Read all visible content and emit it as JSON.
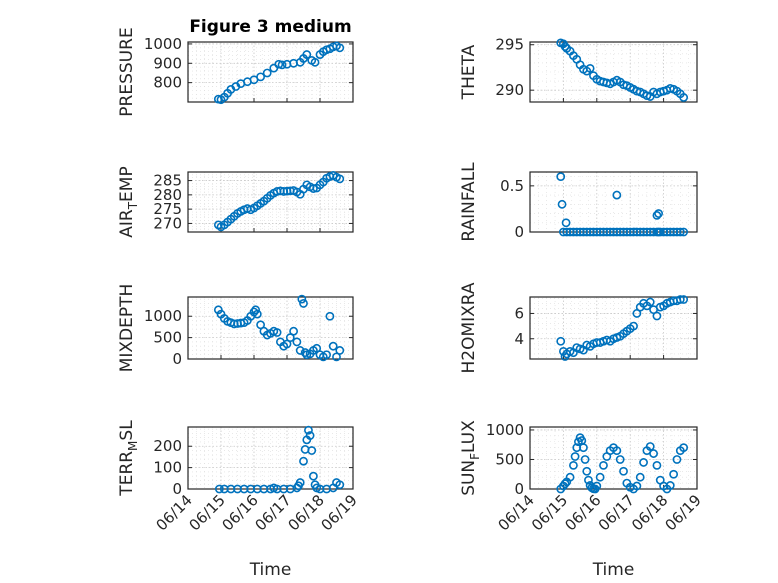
{
  "chart_data": [
    {
      "type": "scatter",
      "title": "Figure 3 medium",
      "ylabel": "PRESSURE",
      "xlabel": "",
      "ylim": [
        700,
        1010
      ],
      "yticks": [
        800,
        900,
        1000
      ],
      "xlim": [
        "06/14",
        "06/19"
      ],
      "xticks": [
        "06/14",
        "06/15",
        "06/16",
        "06/17",
        "06/18",
        "06/19"
      ],
      "show_xticklabels": false,
      "grid": true,
      "x": [
        0.92,
        1.0,
        1.1,
        1.2,
        1.3,
        1.45,
        1.6,
        1.8,
        2.0,
        2.2,
        2.4,
        2.6,
        2.75,
        2.85,
        3.0,
        3.2,
        3.4,
        3.5,
        3.6,
        3.75,
        3.85,
        4.0,
        4.1,
        4.2,
        4.3,
        4.4,
        4.5,
        4.6
      ],
      "y": [
        715,
        712,
        725,
        745,
        765,
        780,
        795,
        805,
        815,
        830,
        850,
        875,
        895,
        892,
        895,
        900,
        905,
        925,
        945,
        915,
        905,
        945,
        960,
        970,
        975,
        985,
        990,
        980
      ]
    },
    {
      "type": "scatter",
      "title": "",
      "ylabel": "THETA",
      "xlabel": "",
      "ylim": [
        288.7,
        295.3
      ],
      "yticks": [
        290,
        295
      ],
      "xlim": [
        "06/14",
        "06/19"
      ],
      "xticks": [
        "06/14",
        "06/15",
        "06/16",
        "06/17",
        "06/18",
        "06/19"
      ],
      "show_xticklabels": false,
      "grid": true,
      "x": [
        0.92,
        1.0,
        1.05,
        1.1,
        1.2,
        1.3,
        1.4,
        1.5,
        1.6,
        1.7,
        1.8,
        1.9,
        2.0,
        2.1,
        2.2,
        2.3,
        2.4,
        2.5,
        2.6,
        2.7,
        2.8,
        2.9,
        3.0,
        3.1,
        3.2,
        3.3,
        3.4,
        3.5,
        3.6,
        3.7,
        3.8,
        3.9,
        4.0,
        4.1,
        4.2,
        4.3,
        4.4,
        4.5,
        4.6
      ],
      "y": [
        295.2,
        295.1,
        294.8,
        294.6,
        294.3,
        293.8,
        293.4,
        292.8,
        292.3,
        292.1,
        292.4,
        291.6,
        291.2,
        291.0,
        290.9,
        290.8,
        290.7,
        290.9,
        291.1,
        290.9,
        290.6,
        290.5,
        290.3,
        290.1,
        289.9,
        289.8,
        289.6,
        289.4,
        289.3,
        289.8,
        289.6,
        289.8,
        289.9,
        290.0,
        290.2,
        290.1,
        289.9,
        289.6,
        289.2
      ]
    },
    {
      "type": "scatter",
      "title": "",
      "ylabel": "AIR_TEMP",
      "xlabel": "",
      "ylim": [
        267,
        288
      ],
      "yticks": [
        270,
        275,
        280,
        285
      ],
      "xlim": [
        "06/14",
        "06/19"
      ],
      "xticks": [
        "06/14",
        "06/15",
        "06/16",
        "06/17",
        "06/18",
        "06/19"
      ],
      "show_xticklabels": false,
      "grid": true,
      "x": [
        0.92,
        1.0,
        1.1,
        1.2,
        1.3,
        1.4,
        1.5,
        1.6,
        1.7,
        1.8,
        1.9,
        2.0,
        2.1,
        2.2,
        2.3,
        2.4,
        2.5,
        2.6,
        2.7,
        2.8,
        2.9,
        3.0,
        3.1,
        3.2,
        3.3,
        3.4,
        3.5,
        3.6,
        3.7,
        3.8,
        3.9,
        4.0,
        4.1,
        4.2,
        4.3,
        4.4,
        4.5,
        4.6
      ],
      "y": [
        269.5,
        268.8,
        269.5,
        270.5,
        271.5,
        272.5,
        273.5,
        274.2,
        274.8,
        275.2,
        274.8,
        275.4,
        276.2,
        277.0,
        277.8,
        278.8,
        279.8,
        280.6,
        281.2,
        281.4,
        281.2,
        281.3,
        281.4,
        281.5,
        281.0,
        280.2,
        282.0,
        283.5,
        282.8,
        282.2,
        282.4,
        283.5,
        284.5,
        285.8,
        286.4,
        286.8,
        286.2,
        285.6
      ]
    },
    {
      "type": "scatter",
      "title": "",
      "ylabel": "RAINFALL",
      "xlabel": "",
      "ylim": [
        0,
        0.65
      ],
      "yticks": [
        0,
        0.5
      ],
      "xlim": [
        "06/14",
        "06/19"
      ],
      "xticks": [
        "06/14",
        "06/15",
        "06/16",
        "06/17",
        "06/18",
        "06/19"
      ],
      "show_xticklabels": false,
      "grid": true,
      "x": [
        0.92,
        0.96,
        1.08,
        1.0,
        1.1,
        1.2,
        1.3,
        1.4,
        1.5,
        1.6,
        1.7,
        1.8,
        1.9,
        2.0,
        2.1,
        2.2,
        2.3,
        2.4,
        2.5,
        2.6,
        2.7,
        2.8,
        2.9,
        3.0,
        3.1,
        3.2,
        3.3,
        3.4,
        3.5,
        3.6,
        3.7,
        3.8,
        3.85,
        3.9,
        4.0,
        4.1,
        4.2,
        4.3,
        4.4,
        4.5,
        4.6,
        2.6,
        3.8,
        3.85
      ],
      "y": [
        0.6,
        0.3,
        0.1,
        0,
        0,
        0,
        0,
        0,
        0,
        0,
        0,
        0,
        0,
        0,
        0,
        0,
        0,
        0,
        0,
        0,
        0,
        0,
        0,
        0,
        0,
        0,
        0,
        0,
        0,
        0,
        0,
        0,
        0,
        0,
        0,
        0,
        0,
        0,
        0,
        0,
        0,
        0.4,
        0.18,
        0.2
      ]
    },
    {
      "type": "scatter",
      "title": "",
      "ylabel": "MIXDEPTH",
      "xlabel": "",
      "ylim": [
        0,
        1450
      ],
      "yticks": [
        0,
        500,
        1000
      ],
      "xlim": [
        "06/14",
        "06/19"
      ],
      "xticks": [
        "06/14",
        "06/15",
        "06/16",
        "06/17",
        "06/18",
        "06/19"
      ],
      "show_xticklabels": false,
      "grid": true,
      "x": [
        0.92,
        1.0,
        1.1,
        1.2,
        1.3,
        1.4,
        1.5,
        1.6,
        1.7,
        1.8,
        1.9,
        2.0,
        2.05,
        2.1,
        2.2,
        2.3,
        2.4,
        2.5,
        2.6,
        2.7,
        2.8,
        2.9,
        3.0,
        3.1,
        3.2,
        3.3,
        3.4,
        3.45,
        3.5,
        3.55,
        3.6,
        3.7,
        3.8,
        3.9,
        4.0,
        4.1,
        4.2,
        4.3,
        4.4,
        4.5,
        4.6
      ],
      "y": [
        1150,
        1050,
        950,
        880,
        850,
        820,
        830,
        840,
        850,
        900,
        1000,
        1100,
        1150,
        1050,
        800,
        650,
        560,
        600,
        650,
        620,
        400,
        300,
        350,
        500,
        650,
        400,
        200,
        1400,
        1300,
        150,
        100,
        120,
        200,
        250,
        100,
        50,
        100,
        1000,
        300,
        50,
        200
      ]
    },
    {
      "type": "scatter",
      "title": "",
      "ylabel": "H2OMIXRA",
      "xlabel": "",
      "ylim": [
        2.4,
        7.3
      ],
      "yticks": [
        4,
        6
      ],
      "xlim": [
        "06/14",
        "06/19"
      ],
      "xticks": [
        "06/14",
        "06/15",
        "06/16",
        "06/17",
        "06/18",
        "06/19"
      ],
      "show_xticklabels": false,
      "grid": true,
      "x": [
        0.92,
        1.0,
        1.05,
        1.1,
        1.2,
        1.3,
        1.4,
        1.5,
        1.6,
        1.7,
        1.8,
        1.9,
        2.0,
        2.1,
        2.2,
        2.3,
        2.4,
        2.5,
        2.6,
        2.7,
        2.8,
        2.9,
        3.0,
        3.1,
        3.2,
        3.3,
        3.4,
        3.5,
        3.6,
        3.7,
        3.8,
        3.9,
        4.0,
        4.1,
        4.2,
        4.3,
        4.4,
        4.5,
        4.6
      ],
      "y": [
        3.8,
        3.0,
        2.6,
        2.8,
        3.0,
        2.9,
        3.3,
        3.2,
        3.1,
        3.5,
        3.4,
        3.6,
        3.7,
        3.7,
        3.8,
        3.9,
        3.8,
        4.0,
        4.1,
        4.2,
        4.4,
        4.6,
        4.8,
        5.0,
        6.0,
        6.5,
        6.8,
        6.6,
        6.9,
        6.3,
        5.8,
        6.5,
        6.6,
        6.8,
        6.9,
        7.0,
        7.0,
        7.1,
        7.1
      ]
    },
    {
      "type": "scatter",
      "title": "",
      "ylabel": "TERR_MSL",
      "xlabel": "Time",
      "ylim": [
        0,
        290
      ],
      "yticks": [
        0,
        100,
        200
      ],
      "xlim": [
        "06/14",
        "06/19"
      ],
      "xticks": [
        "06/14",
        "06/15",
        "06/16",
        "06/17",
        "06/18",
        "06/19"
      ],
      "show_xticklabels": true,
      "grid": true,
      "x": [
        0.95,
        1.1,
        1.3,
        1.5,
        1.7,
        1.9,
        2.1,
        2.3,
        2.5,
        2.6,
        2.7,
        2.9,
        3.1,
        3.3,
        3.35,
        3.4,
        3.5,
        3.55,
        3.6,
        3.65,
        3.7,
        3.75,
        3.8,
        3.85,
        3.9,
        4.0,
        4.2,
        4.4,
        4.5,
        4.6
      ],
      "y": [
        0,
        0,
        0,
        0,
        0,
        0,
        0,
        0,
        0,
        5,
        0,
        0,
        0,
        5,
        15,
        30,
        130,
        185,
        230,
        275,
        250,
        180,
        60,
        20,
        5,
        0,
        0,
        5,
        30,
        20
      ]
    },
    {
      "type": "scatter",
      "title": "",
      "ylabel": "SUN_FLUX",
      "xlabel": "Time",
      "ylim": [
        0,
        1050
      ],
      "yticks": [
        0,
        500,
        1000
      ],
      "xlim": [
        "06/14",
        "06/19"
      ],
      "xticks": [
        "06/14",
        "06/15",
        "06/16",
        "06/17",
        "06/18",
        "06/19"
      ],
      "show_xticklabels": true,
      "grid": true,
      "x": [
        0.92,
        1.0,
        1.05,
        1.1,
        1.2,
        1.3,
        1.35,
        1.4,
        1.45,
        1.5,
        1.55,
        1.6,
        1.65,
        1.7,
        1.75,
        1.8,
        1.85,
        1.9,
        1.95,
        2.0,
        2.1,
        2.2,
        2.3,
        2.4,
        2.5,
        2.6,
        2.7,
        2.8,
        2.9,
        3.0,
        3.1,
        3.2,
        3.3,
        3.4,
        3.5,
        3.6,
        3.7,
        3.8,
        3.9,
        4.0,
        4.1,
        4.2,
        4.3,
        4.4,
        4.5,
        4.6
      ],
      "y": [
        0,
        50,
        90,
        120,
        200,
        400,
        550,
        700,
        800,
        870,
        820,
        700,
        500,
        300,
        150,
        60,
        20,
        5,
        0,
        50,
        200,
        400,
        550,
        650,
        700,
        650,
        500,
        300,
        100,
        30,
        0,
        50,
        200,
        450,
        650,
        720,
        600,
        400,
        150,
        50,
        0,
        60,
        250,
        500,
        650,
        700
      ]
    }
  ]
}
